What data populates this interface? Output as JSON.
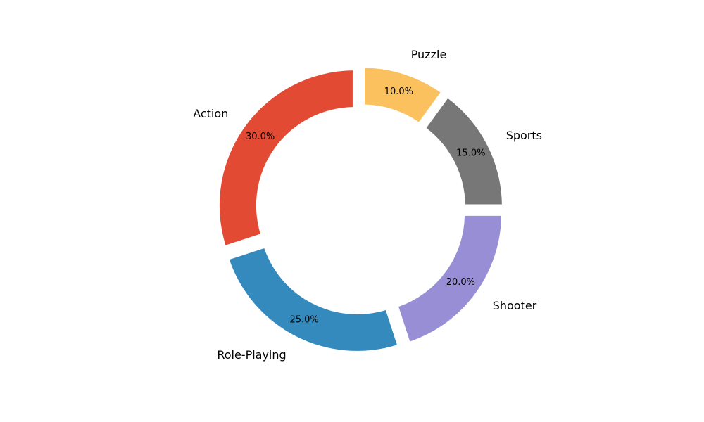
{
  "chart_data": {
    "type": "pie",
    "style": "donut",
    "title": "",
    "start_angle_deg": 90,
    "direction": "counterclockwise",
    "slices": [
      {
        "label": "Action",
        "value": 30,
        "pct_label": "30.0%",
        "color": "#E24A33"
      },
      {
        "label": "Role-Playing",
        "value": 25,
        "pct_label": "25.0%",
        "color": "#348ABD"
      },
      {
        "label": "Shooter",
        "value": 20,
        "pct_label": "20.0%",
        "color": "#988ED5"
      },
      {
        "label": "Sports",
        "value": 15,
        "pct_label": "15.0%",
        "color": "#777777"
      },
      {
        "label": "Puzzle",
        "value": 10,
        "pct_label": "10.0%",
        "color": "#FBC15E"
      }
    ],
    "legend": "none"
  }
}
